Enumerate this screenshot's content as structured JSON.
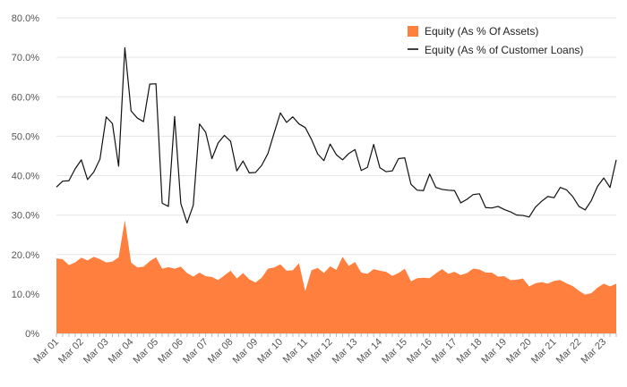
{
  "chart_data": {
    "type": "area",
    "title": "",
    "xlabel": "",
    "ylabel": "",
    "ylim": [
      0,
      80
    ],
    "grid": "horizontal",
    "legend_placement": "top-right",
    "y_ticks": [
      "0%",
      "10.0%",
      "20.0%",
      "30.0%",
      "40.0%",
      "50.0%",
      "60.0%",
      "70.0%",
      "80.0%"
    ],
    "x_ticks": [
      "Mar 01",
      "Mar 02",
      "Mar 03",
      "Mar 04",
      "Mar 05",
      "Mar 06",
      "Mar 07",
      "Mar 08",
      "Mar 09",
      "Mar 10",
      "Mar 11",
      "Mar 12",
      "Mar 13",
      "Mar 14",
      "Mar 15",
      "Mar 16",
      "Mar 17",
      "Mar 18",
      "Mar 19",
      "Mar 20",
      "Mar 21",
      "Mar 22",
      "Mar 23"
    ],
    "x_start": "Mar 01",
    "x_step": "quarterly",
    "series": [
      {
        "name": "Equity (As % Of Assets)",
        "type": "area",
        "color": "#ff7f3f",
        "values": [
          19.0,
          18.8,
          17.3,
          18.0,
          19.2,
          18.5,
          19.4,
          18.8,
          18.0,
          18.2,
          19.3,
          28.7,
          18.0,
          16.7,
          16.9,
          18.3,
          19.3,
          16.4,
          16.8,
          16.4,
          16.9,
          15.3,
          14.4,
          15.4,
          14.5,
          14.3,
          13.5,
          14.7,
          15.9,
          13.9,
          15.3,
          13.7,
          12.9,
          14.1,
          16.4,
          16.7,
          17.5,
          15.9,
          16.0,
          17.8,
          10.7,
          16.0,
          16.6,
          15.3,
          17.0,
          16.1,
          19.4,
          17.1,
          18.1,
          15.4,
          15.1,
          16.3,
          15.9,
          15.6,
          14.6,
          15.3,
          16.4,
          13.2,
          14.0,
          14.1,
          14.0,
          15.2,
          16.3,
          15.1,
          15.6,
          14.8,
          15.3,
          16.4,
          16.2,
          15.4,
          15.4,
          14.4,
          14.5,
          13.5,
          13.6,
          13.9,
          11.9,
          12.7,
          13.0,
          12.6,
          13.3,
          13.5,
          12.7,
          12.0,
          10.8,
          9.8,
          10.2,
          11.6,
          12.6,
          11.9,
          12.6
        ]
      },
      {
        "name": "Equity (As % of Customer Loans)",
        "type": "line",
        "color": "#111111",
        "values": [
          37.1,
          38.6,
          38.7,
          41.7,
          44.0,
          39.0,
          40.9,
          44.2,
          54.9,
          53.2,
          42.4,
          72.4,
          56.4,
          54.6,
          53.7,
          63.2,
          63.3,
          33.0,
          32.2,
          55.0,
          32.9,
          28.0,
          32.5,
          53.1,
          51.0,
          44.3,
          48.3,
          50.2,
          48.7,
          41.2,
          43.7,
          40.7,
          40.8,
          42.6,
          45.6,
          50.8,
          55.9,
          53.5,
          54.9,
          53.1,
          52.2,
          49.2,
          45.5,
          43.8,
          48.0,
          45.3,
          44.0,
          45.6,
          46.6,
          41.3,
          42.1,
          47.9,
          42.0,
          41.0,
          41.2,
          44.3,
          44.5,
          37.8,
          36.3,
          36.2,
          40.4,
          37.0,
          36.5,
          36.3,
          36.2,
          33.1,
          34.0,
          35.2,
          35.4,
          31.9,
          31.8,
          32.2,
          31.4,
          30.8,
          30.0,
          29.9,
          29.5,
          32.0,
          33.5,
          34.7,
          34.4,
          37.0,
          36.4,
          34.7,
          32.2,
          31.3,
          33.7,
          37.3,
          39.4,
          37.0,
          44.0
        ]
      }
    ]
  }
}
